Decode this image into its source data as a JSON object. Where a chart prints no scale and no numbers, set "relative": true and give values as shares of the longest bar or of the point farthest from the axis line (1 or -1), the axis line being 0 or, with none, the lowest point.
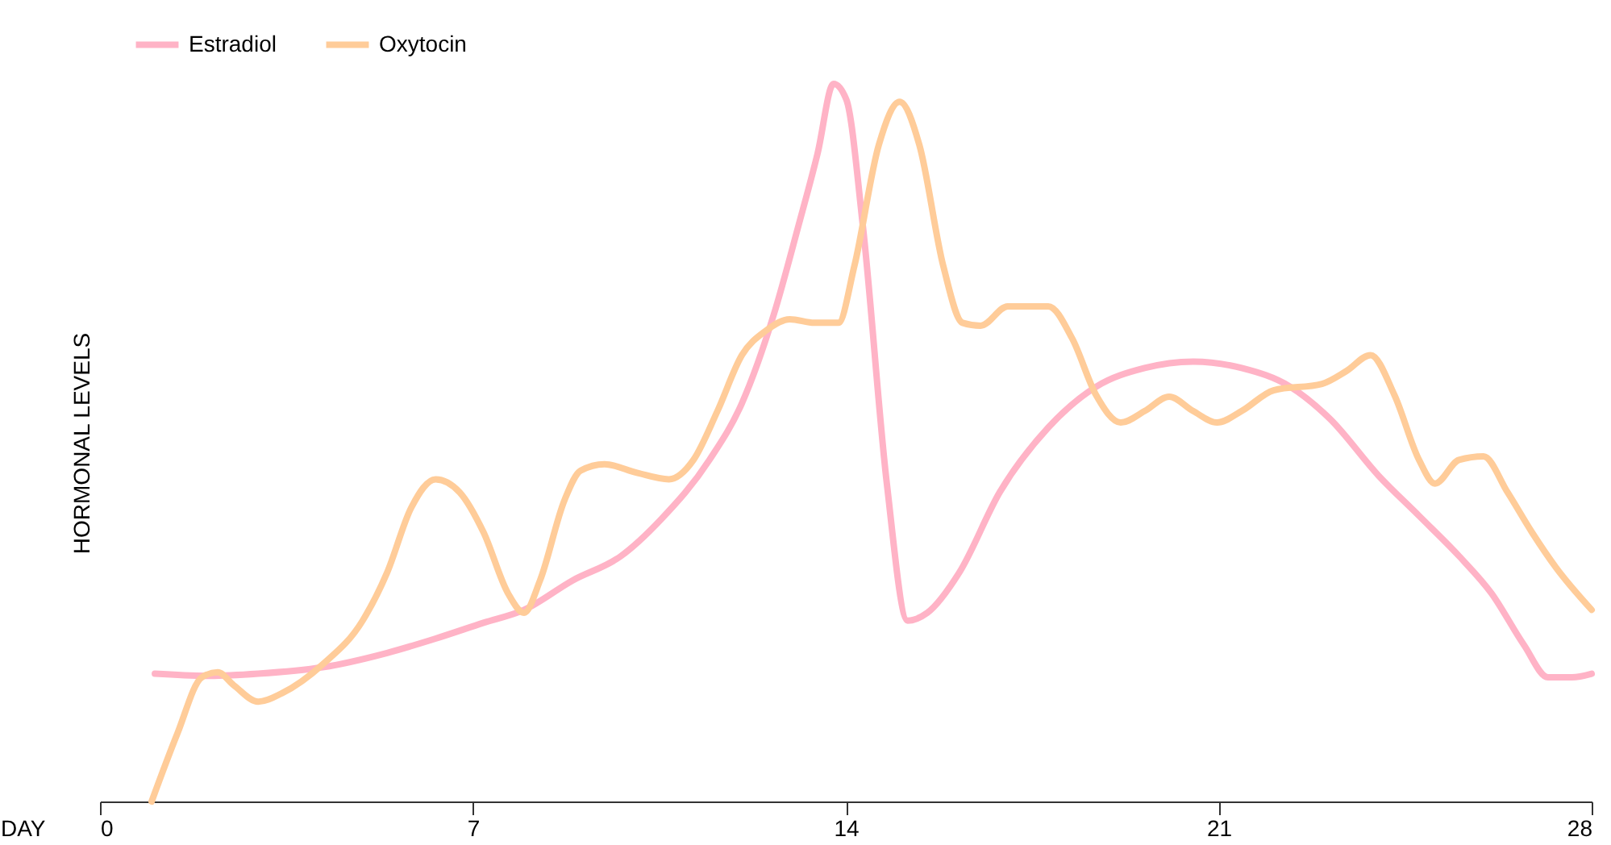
{
  "chart_data": {
    "type": "line",
    "relative": true,
    "xlabel": "DAY",
    "ylabel": "HORMONAL LEVELS",
    "xlim": [
      0,
      28
    ],
    "xticks": [
      0,
      7,
      14,
      21,
      28
    ],
    "legend": "top left",
    "grid": false,
    "marker": "none",
    "line_style": "solid",
    "series": [
      {
        "name": "Estradiol",
        "color": "#ffb3c6",
        "x": [
          1.03,
          2.06,
          2.97,
          4.18,
          5.39,
          6.3,
          7.2,
          7.96,
          8.87,
          9.78,
          10.53,
          11.44,
          12.05,
          12.65,
          13.11,
          13.47,
          13.77,
          14.01,
          14.32,
          14.77,
          15.16,
          15.53,
          16.13,
          16.89,
          17.8,
          18.7,
          19.61,
          20.52,
          21.43,
          22.34,
          23.09,
          24.0,
          24.76,
          25.51,
          26.12,
          26.73,
          27.18,
          27.63,
          28
        ],
        "values": [
          0.178,
          0.175,
          0.178,
          0.187,
          0.207,
          0.227,
          0.249,
          0.267,
          0.308,
          0.342,
          0.393,
          0.476,
          0.555,
          0.679,
          0.802,
          0.903,
          1,
          0.978,
          0.802,
          0.443,
          0.252,
          0.263,
          0.319,
          0.431,
          0.521,
          0.578,
          0.604,
          0.613,
          0.604,
          0.578,
          0.533,
          0.454,
          0.398,
          0.342,
          0.29,
          0.218,
          0.173,
          0.173,
          0.178
        ]
      },
      {
        "name": "Oxytocin",
        "color": "#ffcc99",
        "x": [
          0.97,
          1.45,
          1.91,
          2.21,
          2.51,
          2.97,
          3.42,
          4.18,
          4.93,
          5.39,
          5.84,
          6.3,
          6.75,
          7.2,
          7.66,
          7.96,
          8.26,
          8.72,
          9.02,
          9.47,
          10.08,
          10.68,
          11.14,
          11.59,
          12.05,
          12.5,
          12.95,
          13.41,
          13.86,
          14.16,
          14.62,
          15.01,
          15.38,
          15.83,
          16.19,
          16.53,
          17.04,
          17.8,
          18.25,
          18.7,
          19.16,
          19.61,
          20.07,
          20.52,
          20.97,
          21.43,
          22.03,
          22.94,
          23.4,
          23.85,
          24.3,
          24.76,
          25.06,
          25.51,
          25.97,
          26.42,
          26.88,
          27.33,
          28
        ],
        "values": [
          0,
          0.094,
          0.173,
          0.18,
          0.162,
          0.139,
          0.151,
          0.191,
          0.252,
          0.319,
          0.409,
          0.449,
          0.431,
          0.375,
          0.29,
          0.263,
          0.308,
          0.42,
          0.461,
          0.47,
          0.458,
          0.449,
          0.476,
          0.544,
          0.622,
          0.656,
          0.672,
          0.667,
          0.667,
          0.746,
          0.915,
          0.975,
          0.915,
          0.746,
          0.667,
          0.663,
          0.69,
          0.69,
          0.645,
          0.566,
          0.528,
          0.544,
          0.564,
          0.544,
          0.528,
          0.544,
          0.573,
          0.582,
          0.6,
          0.622,
          0.566,
          0.476,
          0.443,
          0.476,
          0.481,
          0.431,
          0.375,
          0.326,
          0.267
        ]
      }
    ]
  }
}
